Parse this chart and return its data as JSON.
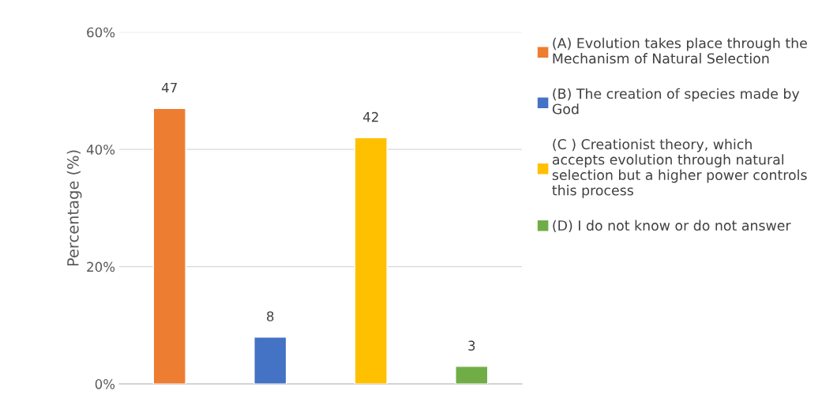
{
  "chart_data": {
    "type": "bar",
    "ylabel": "Percentage (%)",
    "categories": [
      null,
      null,
      null,
      null
    ],
    "series": [
      {
        "name": "(A) Evolution takes place through the Mechanism of Natural Selection",
        "color": "#ed7d31",
        "values": [
          47,
          null,
          null,
          null
        ]
      },
      {
        "name": "(B) The creation of species made by God",
        "color": "#4472c4",
        "values": [
          null,
          8,
          null,
          null
        ]
      },
      {
        "name": "(C ) Creationist theory, which accepts evolution through natural selection but a higher power controls this process",
        "color": "#ffc000",
        "values": [
          null,
          null,
          42,
          null
        ]
      },
      {
        "name": "(D) I do not know or do not answer",
        "color": "#70ad47",
        "values": [
          null,
          null,
          null,
          3
        ]
      }
    ],
    "ylim": [
      0,
      60
    ],
    "yticks": [
      {
        "value": 0,
        "label": "0%"
      },
      {
        "value": 20,
        "label": "20%"
      },
      {
        "value": 40,
        "label": "40%"
      },
      {
        "value": 60,
        "label": "60%"
      }
    ],
    "grid": "y",
    "legend": "right",
    "data_labels": true
  }
}
